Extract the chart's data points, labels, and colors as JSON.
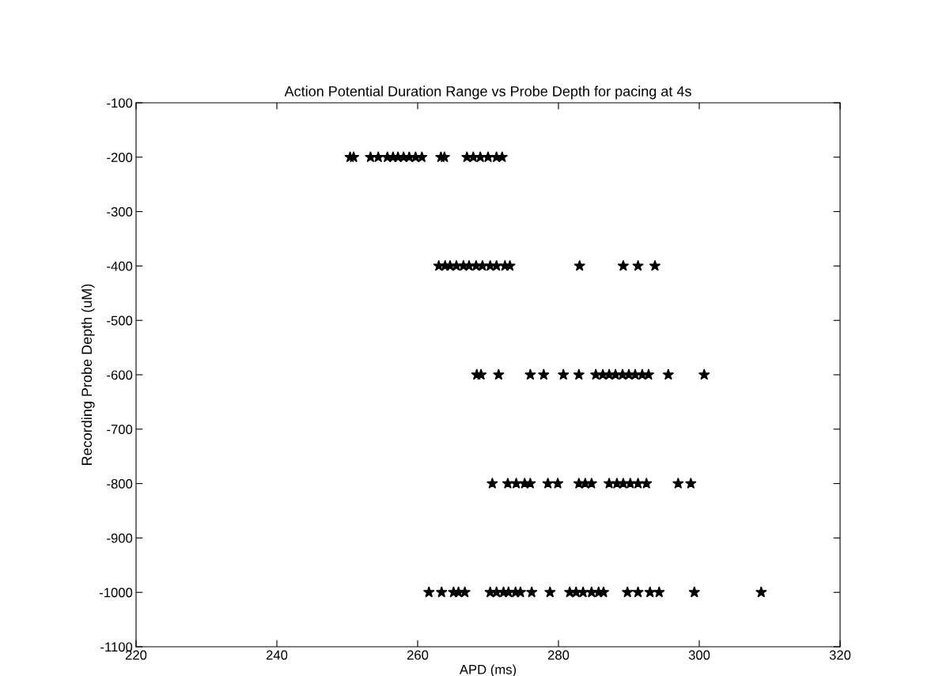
{
  "chart_data": {
    "type": "scatter",
    "title": "Action Potential Duration Range vs Probe Depth for pacing at 4s",
    "xlabel": "APD (ms)",
    "ylabel": "Recording Probe Depth (uM)",
    "xlim": [
      220,
      320
    ],
    "xticks": [
      220,
      240,
      260,
      280,
      300,
      320
    ],
    "ylim": [
      -1100,
      -100
    ],
    "yticks": [
      -1100,
      -1000,
      -900,
      -800,
      -700,
      -600,
      -500,
      -400,
      -300,
      -200,
      -100
    ],
    "marker": "star",
    "grid": false,
    "series": [
      {
        "color": "#000000",
        "x": [
          250.4,
          250.9,
          253.3,
          254.4,
          255.7,
          256.5,
          257.2,
          258.0,
          258.8,
          259.7,
          260.6,
          263.3,
          263.8,
          267.0,
          267.9,
          268.9,
          270.0,
          271.2,
          272.0
        ],
        "values": [
          -200,
          -200,
          -200,
          -200,
          -200,
          -200,
          -200,
          -200,
          -200,
          -200,
          -200,
          -200,
          -200,
          -200,
          -200,
          -200,
          -200,
          -200,
          -200
        ]
      },
      {
        "color": "#000000",
        "x": [
          263.0,
          263.9,
          264.6,
          265.5,
          266.5,
          267.3,
          268.3,
          269.2,
          270.3,
          271.2,
          272.4,
          273.1,
          283.0,
          289.2,
          291.3,
          293.7
        ],
        "values": [
          -400,
          -400,
          -400,
          -400,
          -400,
          -400,
          -400,
          -400,
          -400,
          -400,
          -400,
          -400,
          -400,
          -400,
          -400,
          -400
        ]
      },
      {
        "color": "#000000",
        "x": [
          268.4,
          269.0,
          271.5,
          276.0,
          277.9,
          280.7,
          282.9,
          285.3,
          286.3,
          287.2,
          288.1,
          289.1,
          290.0,
          290.9,
          291.9,
          292.8,
          295.6,
          300.7
        ],
        "values": [
          -600,
          -600,
          -600,
          -600,
          -600,
          -600,
          -600,
          -600,
          -600,
          -600,
          -600,
          -600,
          -600,
          -600,
          -600,
          -600,
          -600,
          -600
        ]
      },
      {
        "color": "#000000",
        "x": [
          270.6,
          272.8,
          274.0,
          275.2,
          276.0,
          278.5,
          279.9,
          282.9,
          283.8,
          284.7,
          287.2,
          288.3,
          289.2,
          290.2,
          291.3,
          292.5,
          297.0,
          298.8
        ],
        "values": [
          -800,
          -800,
          -800,
          -800,
          -800,
          -800,
          -800,
          -800,
          -800,
          -800,
          -800,
          -800,
          -800,
          -800,
          -800,
          -800,
          -800,
          -800
        ]
      },
      {
        "color": "#000000",
        "x": [
          261.6,
          263.4,
          265.1,
          265.8,
          266.7,
          270.3,
          271.2,
          272.2,
          272.9,
          273.9,
          274.6,
          276.2,
          278.8,
          281.6,
          282.5,
          283.5,
          284.7,
          285.7,
          286.4,
          289.8,
          291.3,
          293.0,
          294.3,
          299.3,
          308.8
        ],
        "values": [
          -1000,
          -1000,
          -1000,
          -1000,
          -1000,
          -1000,
          -1000,
          -1000,
          -1000,
          -1000,
          -1000,
          -1000,
          -1000,
          -1000,
          -1000,
          -1000,
          -1000,
          -1000,
          -1000,
          -1000,
          -1000,
          -1000,
          -1000,
          -1000,
          -1000
        ]
      }
    ]
  }
}
